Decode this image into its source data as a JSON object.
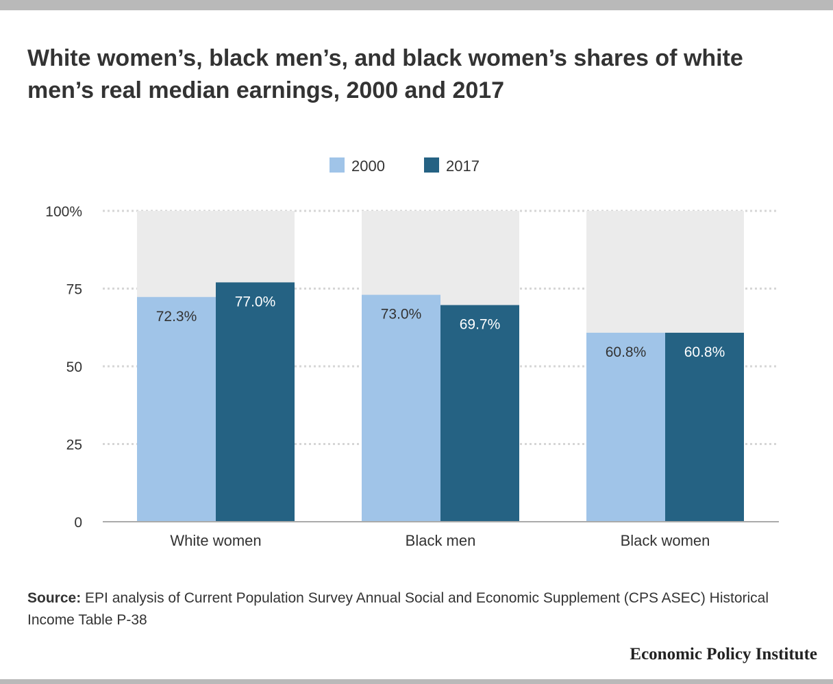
{
  "title": "White women’s, black men’s, and black women’s shares of white men’s real median earnings, 2000 and 2017",
  "source": {
    "label": "Source:",
    "text": " EPI analysis of Current Population Survey Annual Social and Economic Supplement (CPS ASEC) Historical Income Table P-38"
  },
  "brand": "Economic Policy Institute",
  "colors": {
    "series_2000": "#a0c4e8",
    "series_2017": "#256283",
    "background_bar": "#ebebeb",
    "gridline": "#d6d6d6",
    "baseline": "#aaaaaa"
  },
  "chart_data": {
    "type": "bar",
    "categories": [
      "White women",
      "Black men",
      "Black women"
    ],
    "series": [
      {
        "name": "2000",
        "values": [
          72.3,
          73.0,
          60.8
        ],
        "labels": [
          "72.3%",
          "73.0%",
          "60.8%"
        ]
      },
      {
        "name": "2017",
        "values": [
          77.0,
          69.7,
          60.8
        ],
        "labels": [
          "77.0%",
          "69.7%",
          "60.8%"
        ]
      }
    ],
    "ylim": [
      0,
      100
    ],
    "yticks": [
      0,
      25,
      50,
      75,
      100
    ],
    "ytick_labels": [
      "0",
      "25",
      "50",
      "75",
      "100%"
    ],
    "background_value": 100,
    "grid": true,
    "legend_position": "top-center",
    "xlabel": "",
    "ylabel": ""
  }
}
